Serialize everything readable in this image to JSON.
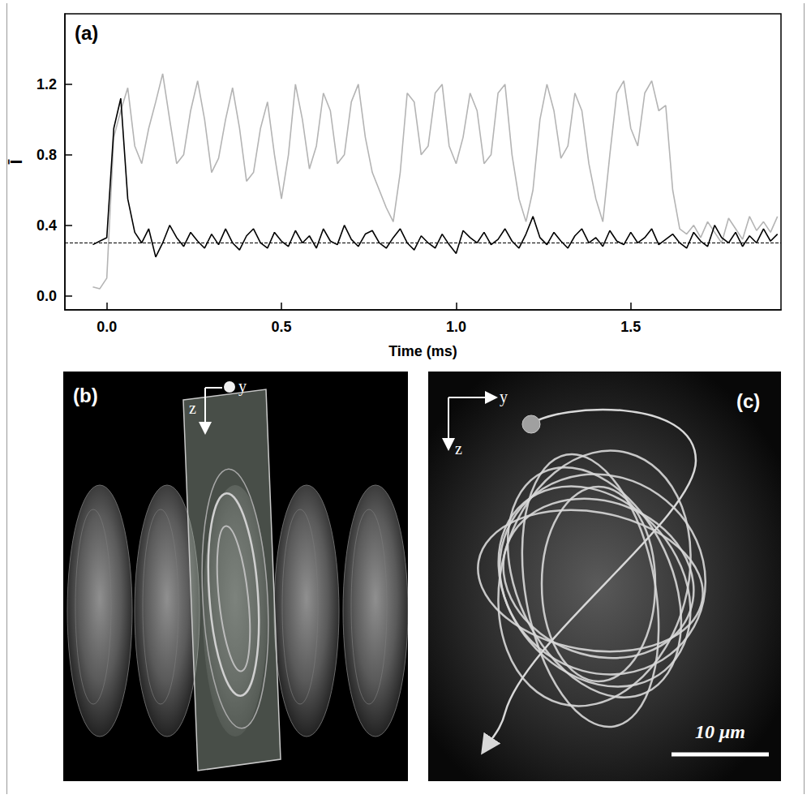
{
  "chart_data": {
    "type": "line",
    "panel": "(a)",
    "x_label": "Time (ms)",
    "y_label": "Ī",
    "xlim": [
      -0.12,
      1.93
    ],
    "ylim": [
      -0.08,
      1.6
    ],
    "xticks": [
      {
        "value": 0,
        "label": "0.0"
      },
      0.5,
      {
        "value": 1,
        "label": "1.0"
      },
      1.5
    ],
    "yticks": [
      {
        "value": 0,
        "label": "0.0"
      },
      0.4,
      0.8,
      1.2
    ],
    "grid": false,
    "reference_line": {
      "value": 0.3,
      "line_style": "dashed",
      "color": "#000000"
    },
    "x": [
      -0.04,
      -0.02,
      0,
      0.02,
      0.04,
      0.06,
      0.08,
      0.1,
      0.12,
      0.14,
      0.16,
      0.18,
      0.2,
      0.22,
      0.24,
      0.26,
      0.28,
      0.3,
      0.32,
      0.34,
      0.36,
      0.38,
      0.4,
      0.42,
      0.44,
      0.46,
      0.48,
      0.5,
      0.52,
      0.54,
      0.56,
      0.58,
      0.6,
      0.62,
      0.64,
      0.66,
      0.68,
      0.7,
      0.72,
      0.74,
      0.76,
      0.78,
      0.8,
      0.82,
      0.84,
      0.86,
      0.88,
      0.9,
      0.92,
      0.94,
      0.96,
      0.98,
      1,
      1.02,
      1.04,
      1.06,
      1.08,
      1.1,
      1.12,
      1.14,
      1.16,
      1.18,
      1.2,
      1.22,
      1.24,
      1.26,
      1.28,
      1.3,
      1.32,
      1.34,
      1.36,
      1.38,
      1.4,
      1.42,
      1.44,
      1.46,
      1.48,
      1.5,
      1.52,
      1.54,
      1.56,
      1.58,
      1.6,
      1.62,
      1.64,
      1.66,
      1.68,
      1.7,
      1.72,
      1.74,
      1.76,
      1.78,
      1.8,
      1.82,
      1.84,
      1.86,
      1.88,
      1.9,
      1.92
    ],
    "series": [
      {
        "color": "#b4b4b4",
        "line_style": "solid",
        "values": [
          0.05,
          0.04,
          0.1,
          0.9,
          1.05,
          1.18,
          0.85,
          0.75,
          0.95,
          1.1,
          1.26,
          1.0,
          0.75,
          0.8,
          1.05,
          1.22,
          1.0,
          0.7,
          0.78,
          1.0,
          1.18,
          0.95,
          0.65,
          0.7,
          0.95,
          1.1,
          0.8,
          0.55,
          0.8,
          1.2,
          1.0,
          0.72,
          0.85,
          1.15,
          1.05,
          0.75,
          0.8,
          1.1,
          1.2,
          0.9,
          0.7,
          0.6,
          0.5,
          0.42,
          0.7,
          1.15,
          1.1,
          0.8,
          0.85,
          1.15,
          1.2,
          0.85,
          0.75,
          0.9,
          1.15,
          1.05,
          0.75,
          0.8,
          1.15,
          1.2,
          0.8,
          0.55,
          0.42,
          0.6,
          1.0,
          1.2,
          1.05,
          0.78,
          0.85,
          1.15,
          1.05,
          0.75,
          0.55,
          0.42,
          0.8,
          1.15,
          1.22,
          0.95,
          0.85,
          1.15,
          1.22,
          1.05,
          1.08,
          0.6,
          0.38,
          0.35,
          0.4,
          0.33,
          0.42,
          0.36,
          0.3,
          0.44,
          0.38,
          0.32,
          0.45,
          0.37,
          0.42,
          0.36,
          0.45
        ]
      },
      {
        "color": "#000000",
        "line_style": "solid",
        "values": [
          0.29,
          0.31,
          0.33,
          0.95,
          1.12,
          0.55,
          0.36,
          0.3,
          0.38,
          0.22,
          0.3,
          0.4,
          0.33,
          0.28,
          0.36,
          0.31,
          0.27,
          0.35,
          0.29,
          0.38,
          0.3,
          0.26,
          0.34,
          0.38,
          0.3,
          0.27,
          0.36,
          0.31,
          0.28,
          0.37,
          0.3,
          0.34,
          0.27,
          0.38,
          0.31,
          0.29,
          0.4,
          0.32,
          0.28,
          0.35,
          0.37,
          0.3,
          0.27,
          0.33,
          0.38,
          0.3,
          0.26,
          0.34,
          0.3,
          0.27,
          0.35,
          0.29,
          0.24,
          0.37,
          0.33,
          0.3,
          0.36,
          0.29,
          0.32,
          0.38,
          0.31,
          0.27,
          0.35,
          0.45,
          0.33,
          0.29,
          0.36,
          0.31,
          0.27,
          0.34,
          0.38,
          0.3,
          0.33,
          0.28,
          0.37,
          0.31,
          0.29,
          0.36,
          0.3,
          0.33,
          0.38,
          0.29,
          0.32,
          0.35,
          0.3,
          0.27,
          0.36,
          0.31,
          0.28,
          0.4,
          0.33,
          0.3,
          0.36,
          0.28,
          0.34,
          0.3,
          0.38,
          0.31,
          0.35
        ]
      }
    ]
  },
  "panels": [
    {
      "label": "(b)",
      "axes": {
        "y": "y",
        "z": "z"
      }
    },
    {
      "label": "(c)",
      "axes": {
        "y": "y",
        "z": "z"
      },
      "scale_bar": "10 μm"
    }
  ]
}
